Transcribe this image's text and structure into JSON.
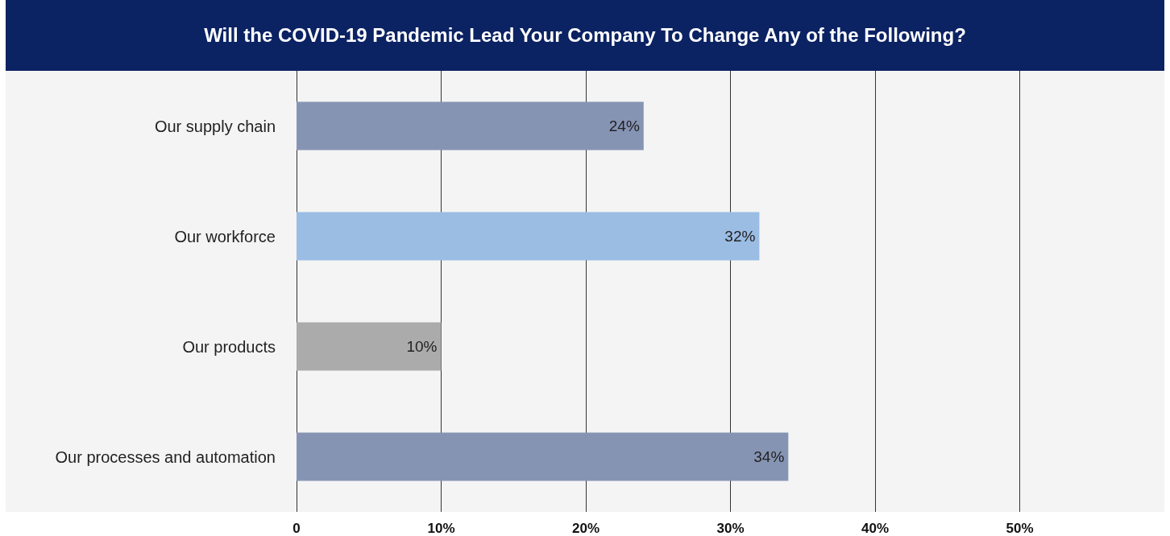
{
  "chart_data": {
    "type": "bar",
    "orientation": "horizontal",
    "title": "Will the COVID-19 Pandemic Lead Your Company To Change Any of the Following?",
    "categories": [
      "Our supply chain",
      "Our workforce",
      "Our products",
      "Our processes and automation"
    ],
    "values": [
      24,
      32,
      10,
      34
    ],
    "colors": [
      "#8694b4",
      "#9bbde4",
      "#ababab",
      "#8694b4"
    ],
    "value_labels": [
      "24%",
      "32%",
      "10%",
      "34%"
    ],
    "xlim": [
      0,
      60
    ],
    "xticks": [
      0,
      {
        "value": 10,
        "label": "10%"
      },
      {
        "value": 20,
        "label": "20%"
      },
      {
        "value": 30,
        "label": "30%"
      },
      {
        "value": 40,
        "label": "40%"
      },
      {
        "value": 50,
        "label": "50%"
      }
    ],
    "grid": "x"
  }
}
